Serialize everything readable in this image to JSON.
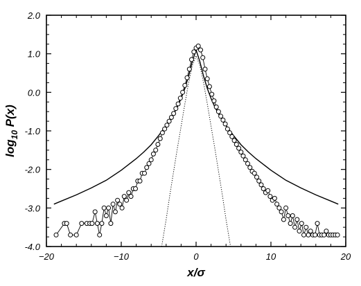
{
  "chart_data": {
    "type": "line",
    "title": "",
    "xlabel": "x/σ",
    "ylabel": {
      "prefix": "log",
      "subscript": "10",
      "suffix": " P(x)"
    },
    "xlim": [
      -20,
      20
    ],
    "ylim": [
      -4.0,
      2.0
    ],
    "xticks": [
      -20,
      -10,
      0,
      10,
      20
    ],
    "xtick_labels": [
      "−20",
      "−10",
      "0",
      "10",
      "20"
    ],
    "yticks": [
      2.0,
      1.0,
      0.0,
      -1.0,
      -2.0,
      -3.0,
      -4.0
    ],
    "ytick_labels": [
      "2.0",
      "1.0",
      "0.0",
      "-1.0",
      "-2.0",
      "-3.0",
      "-4.0"
    ],
    "grid": false,
    "legend": "none",
    "series": [
      {
        "style": "solid-line",
        "x": [
          -19,
          -18,
          -16,
          -14,
          -12,
          -10,
          -8,
          -7,
          -6,
          -5,
          -4,
          -3,
          -2.5,
          -2,
          -1.5,
          -1,
          -0.5,
          0,
          0.5,
          1,
          1.5,
          2,
          2.5,
          3,
          4,
          5,
          6,
          7,
          8,
          10,
          12,
          14,
          16,
          18,
          19
        ],
        "y": [
          -2.9,
          -2.82,
          -2.66,
          -2.48,
          -2.28,
          -2.02,
          -1.72,
          -1.55,
          -1.36,
          -1.12,
          -0.86,
          -0.56,
          -0.38,
          -0.16,
          0.1,
          0.42,
          0.8,
          1.1,
          0.8,
          0.42,
          0.1,
          -0.16,
          -0.38,
          -0.56,
          -0.86,
          -1.12,
          -1.36,
          -1.55,
          -1.72,
          -2.02,
          -2.28,
          -2.48,
          -2.66,
          -2.82,
          -2.9
        ]
      },
      {
        "style": "dotted-line",
        "x": [
          -4.6,
          -4,
          -3.5,
          -3,
          -2.5,
          -2,
          -1.5,
          -1,
          -0.5,
          0,
          0.5,
          1,
          1.5,
          2,
          2.5,
          3,
          3.5,
          4,
          4.6
        ],
        "y": [
          -4.0,
          -3.3,
          -2.65,
          -2.05,
          -1.45,
          -0.88,
          -0.3,
          0.25,
          0.7,
          0.95,
          0.7,
          0.25,
          -0.3,
          -0.88,
          -1.45,
          -2.05,
          -2.65,
          -3.3,
          -4.0
        ]
      },
      {
        "style": "open-circles-connected",
        "x": [
          -18.7,
          -17.6,
          -17.3,
          -16.8,
          -16,
          -15.3,
          -14.6,
          -14.2,
          -13.9,
          -13.5,
          -13.2,
          -12.9,
          -12.6,
          -12.3,
          -12.0,
          -11.7,
          -11.4,
          -11.1,
          -10.8,
          -10.5,
          -10.2,
          -9.9,
          -9.6,
          -9.3,
          -9.0,
          -8.7,
          -8.4,
          -8.1,
          -7.8,
          -7.5,
          -7.2,
          -6.9,
          -6.6,
          -6.3,
          -6.0,
          -5.7,
          -5.4,
          -5.1,
          -4.8,
          -4.5,
          -4.2,
          -3.9,
          -3.6,
          -3.3,
          -3.0,
          -2.7,
          -2.4,
          -2.1,
          -1.8,
          -1.5,
          -1.2,
          -0.9,
          -0.6,
          -0.3,
          0.0,
          0.3,
          0.6,
          0.9,
          1.2,
          1.5,
          1.8,
          2.1,
          2.4,
          2.7,
          3.0,
          3.3,
          3.6,
          3.9,
          4.2,
          4.5,
          4.8,
          5.1,
          5.4,
          5.7,
          6.0,
          6.3,
          6.6,
          6.9,
          7.2,
          7.5,
          7.8,
          8.1,
          8.4,
          8.7,
          9.0,
          9.3,
          9.6,
          9.9,
          10.2,
          10.5,
          10.8,
          11.1,
          11.4,
          11.7,
          12.0,
          12.3,
          12.6,
          12.9,
          13.2,
          13.5,
          13.8,
          14.1,
          14.4,
          14.7,
          15.0,
          15.3,
          15.6,
          15.9,
          16.2,
          16.5,
          16.8,
          17.1,
          17.4,
          17.7,
          18.0,
          18.3,
          18.6,
          18.9
        ],
        "y": [
          -3.7,
          -3.4,
          -3.4,
          -3.7,
          -3.7,
          -3.4,
          -3.4,
          -3.4,
          -3.4,
          -3.1,
          -3.4,
          -3.7,
          -3.4,
          -3.0,
          -3.2,
          -3.0,
          -3.4,
          -2.9,
          -3.1,
          -2.8,
          -2.9,
          -3.0,
          -2.7,
          -2.8,
          -2.6,
          -2.7,
          -2.5,
          -2.5,
          -2.3,
          -2.3,
          -2.1,
          -2.1,
          -1.95,
          -1.85,
          -1.75,
          -1.6,
          -1.5,
          -1.35,
          -1.2,
          -1.05,
          -0.95,
          -0.85,
          -0.75,
          -0.65,
          -0.55,
          -0.42,
          -0.3,
          -0.15,
          0.0,
          0.18,
          0.38,
          0.6,
          0.85,
          1.05,
          1.15,
          1.2,
          1.1,
          0.9,
          0.6,
          0.35,
          0.15,
          -0.05,
          -0.22,
          -0.38,
          -0.5,
          -0.62,
          -0.72,
          -0.82,
          -0.95,
          -1.05,
          -1.15,
          -1.25,
          -1.35,
          -1.45,
          -1.55,
          -1.65,
          -1.75,
          -1.85,
          -1.95,
          -2.05,
          -2.1,
          -2.2,
          -2.3,
          -2.4,
          -2.5,
          -2.6,
          -2.55,
          -2.7,
          -2.8,
          -2.75,
          -2.9,
          -3.0,
          -3.1,
          -3.3,
          -3.0,
          -3.2,
          -3.4,
          -3.2,
          -3.5,
          -3.3,
          -3.6,
          -3.4,
          -3.7,
          -3.5,
          -3.7,
          -3.6,
          -3.7,
          -3.7,
          -3.4,
          -3.7,
          -3.7,
          -3.7,
          -3.6,
          -3.7,
          -3.7,
          -3.7,
          -3.7,
          -3.7
        ]
      }
    ]
  }
}
